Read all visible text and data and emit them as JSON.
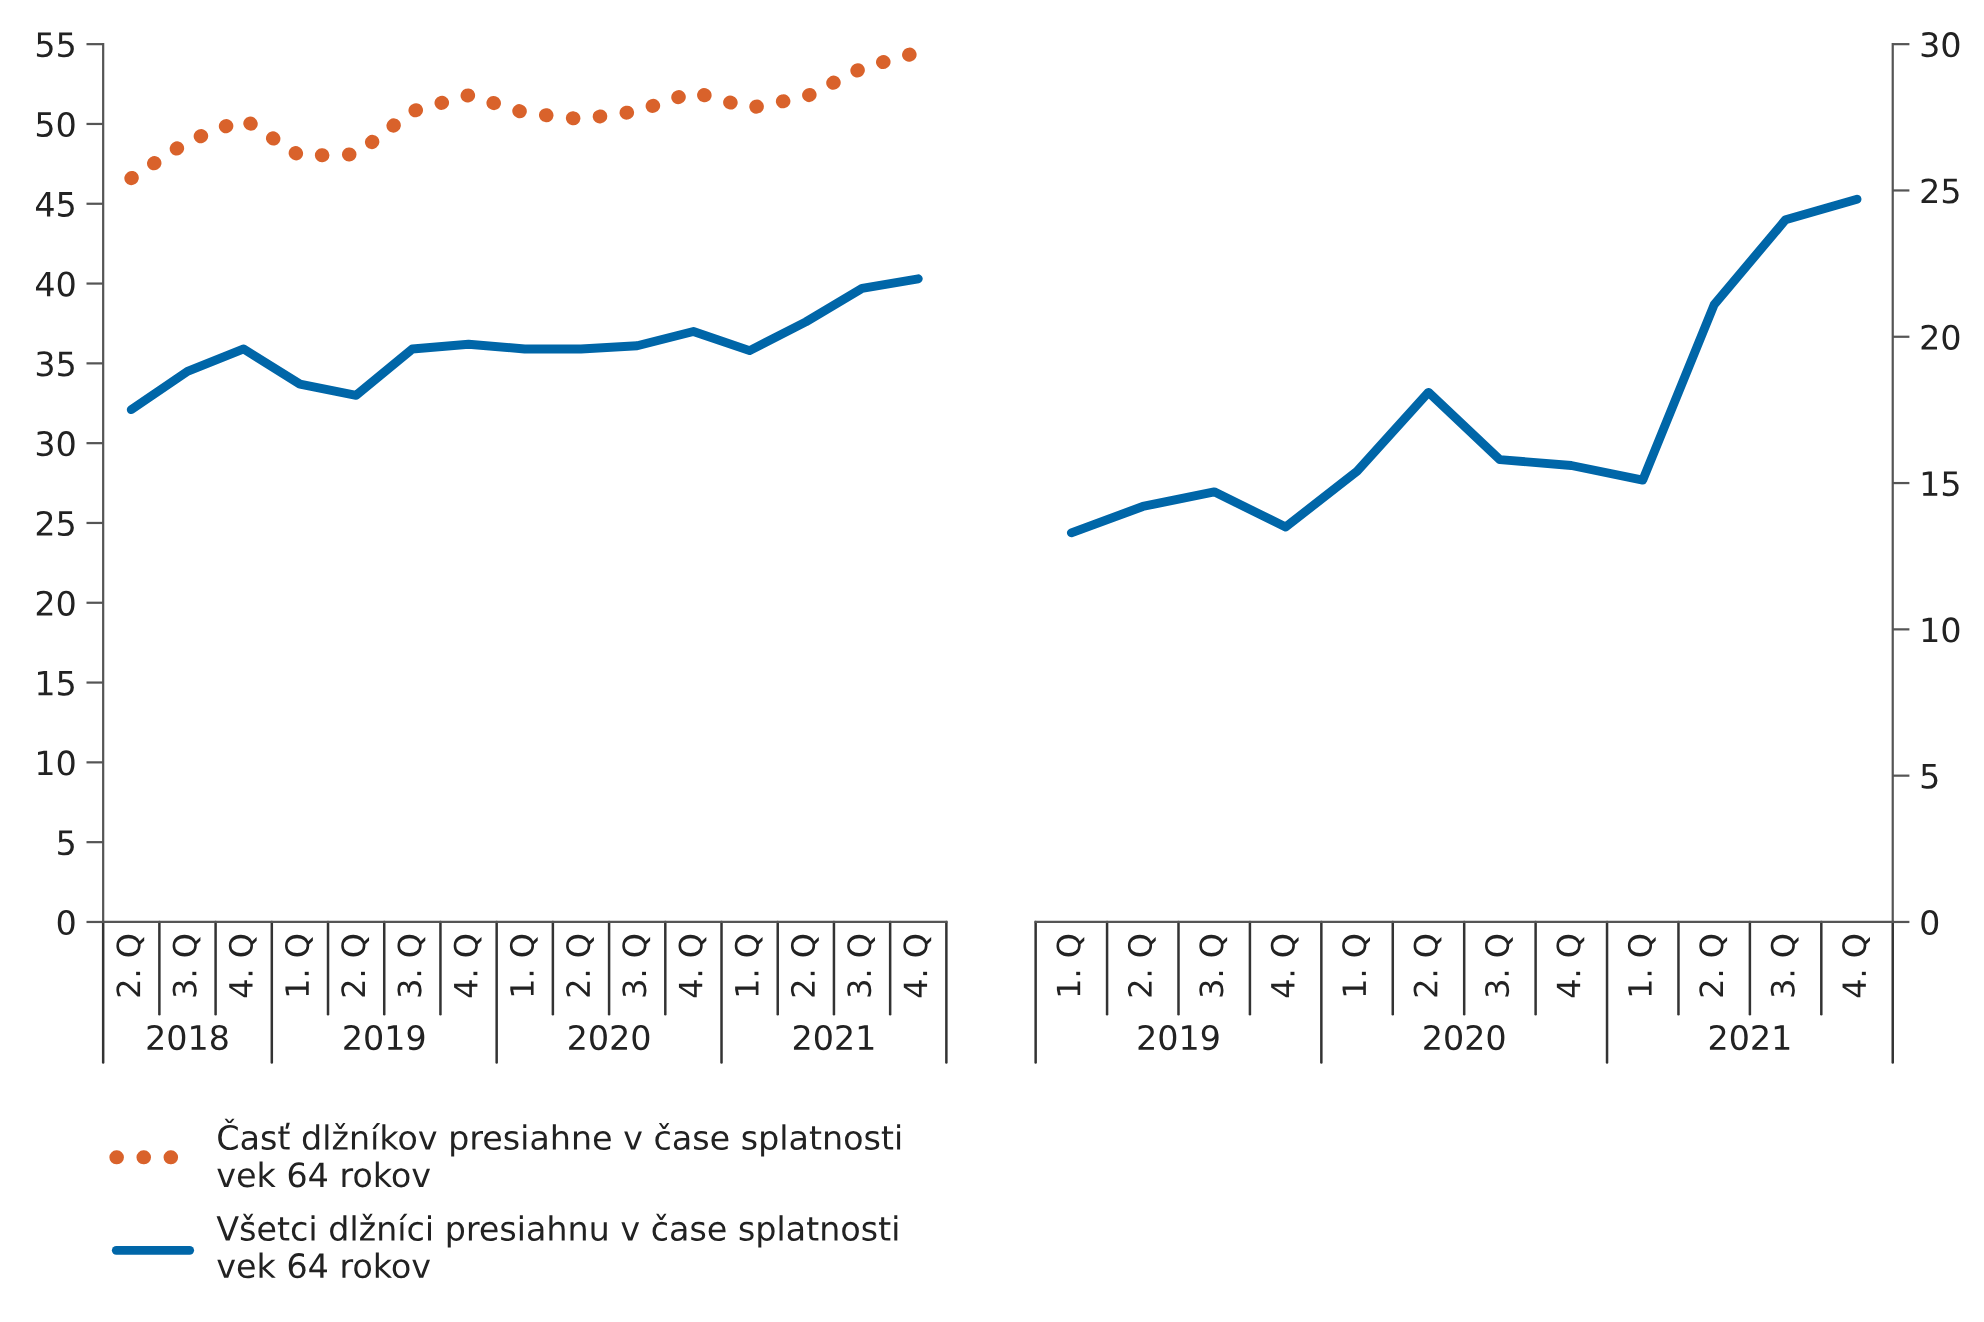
{
  "chart_data": [
    {
      "type": "line",
      "categories": [
        "2. Q",
        "3. Q",
        "4. Q",
        "1. Q",
        "2. Q",
        "3. Q",
        "4. Q",
        "1. Q",
        "2. Q",
        "3. Q",
        "4. Q",
        "1. Q",
        "2. Q",
        "3. Q",
        "4. Q"
      ],
      "series": [
        {
          "name": "Časť dlžníkov presiahne v čase splatnosti vek 64 rokov",
          "color": "#d9622b",
          "line_style": "dotted",
          "values": [
            46.6,
            48.9,
            50.3,
            48.0,
            48.1,
            50.8,
            51.8,
            50.7,
            50.3,
            50.8,
            52.0,
            51.0,
            51.7,
            53.5,
            54.5
          ]
        },
        {
          "name": "Všetci dlžníci presiahnu v čase splatnosti vek 64 rokov",
          "color": "#0066a8",
          "line_style": "solid",
          "values": [
            32.1,
            34.5,
            35.9,
            33.7,
            33.0,
            35.9,
            36.2,
            35.9,
            35.9,
            36.1,
            37.0,
            35.8,
            37.6,
            39.7,
            40.3
          ]
        }
      ],
      "ylim": [
        0,
        55
      ],
      "yticks": [
        0,
        5,
        10,
        15,
        20,
        25,
        30,
        35,
        40,
        45,
        50,
        55
      ],
      "annotations": [
        "2018",
        "2019",
        "2020",
        "2021"
      ],
      "grid": false,
      "legend": "bottom"
    },
    {
      "type": "line",
      "categories": [
        "1. Q",
        "2. Q",
        "3. Q",
        "4. Q",
        "1. Q",
        "2. Q",
        "3. Q",
        "4. Q",
        "1. Q",
        "2. Q",
        "3. Q",
        "4. Q"
      ],
      "series": [
        {
          "color": "#0066a8",
          "axis": "y2",
          "line_style": "solid",
          "values": [
            13.3,
            14.2,
            14.7,
            13.5,
            15.4,
            18.1,
            15.8,
            15.6,
            15.1,
            21.1,
            24.0,
            24.7
          ]
        }
      ],
      "y2lim": [
        0,
        30
      ],
      "y2ticks": [
        0,
        5,
        10,
        15,
        20,
        25,
        30
      ],
      "annotations": [
        "2019",
        "2020",
        "2021"
      ],
      "grid": false,
      "legend": false
    }
  ]
}
